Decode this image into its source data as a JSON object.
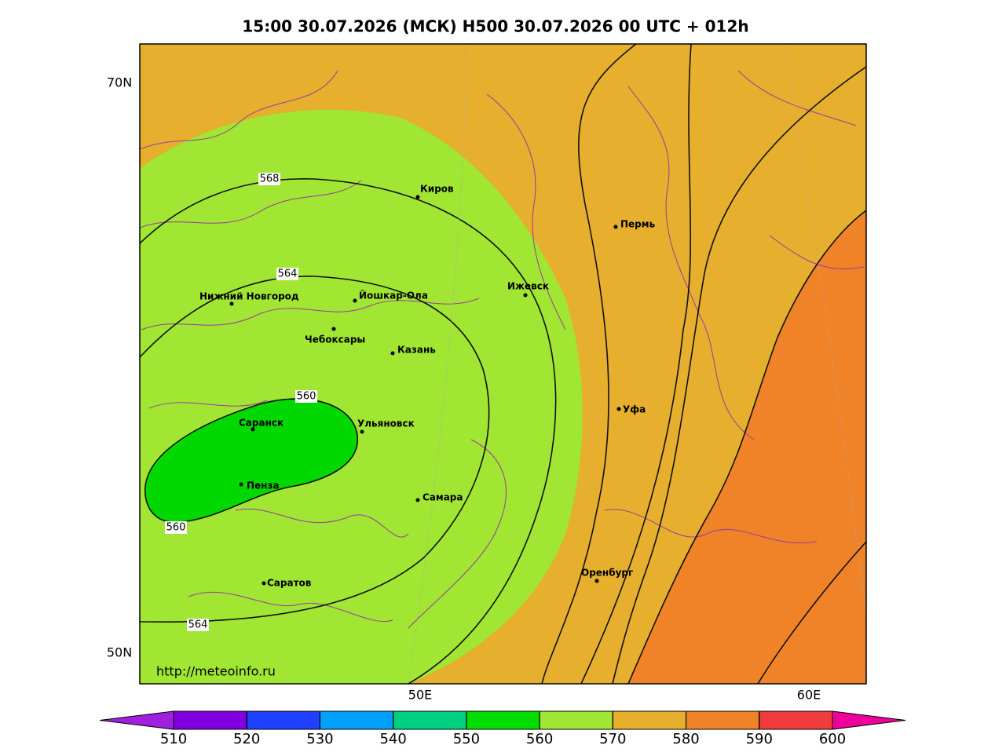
{
  "header": {
    "title": "15:00 30.07.2026 (МСК) H500  30.07.2026 00 UTC + 012h"
  },
  "map": {
    "lat_labels": [
      "70N",
      "50N"
    ],
    "lon_labels": [
      "50E",
      "60E"
    ],
    "contour_labels": [
      568,
      564,
      560,
      560,
      564
    ],
    "cities": [
      {
        "name": "Киров"
      },
      {
        "name": "Пермь"
      },
      {
        "name": "Нижний Новгород"
      },
      {
        "name": "Йошкар-Ола"
      },
      {
        "name": "Ижевск"
      },
      {
        "name": "Чебоксары"
      },
      {
        "name": "Казань"
      },
      {
        "name": "Саранск"
      },
      {
        "name": "Ульяновск"
      },
      {
        "name": "Уфа"
      },
      {
        "name": "Пенза"
      },
      {
        "name": "Самара"
      },
      {
        "name": "Оренбург"
      },
      {
        "name": "Саратов"
      }
    ],
    "credit": "http://meteoinfo.ru"
  },
  "colorbar": {
    "ticks": [
      510,
      520,
      530,
      540,
      550,
      560,
      570,
      580,
      590,
      600
    ],
    "colors": [
      "#a020e0",
      "#8000e0",
      "#2040ff",
      "#00a0ff",
      "#00d080",
      "#00dc00",
      "#a0e632",
      "#e6af2d",
      "#f08228",
      "#f03c3c",
      "#f0009a"
    ]
  }
}
